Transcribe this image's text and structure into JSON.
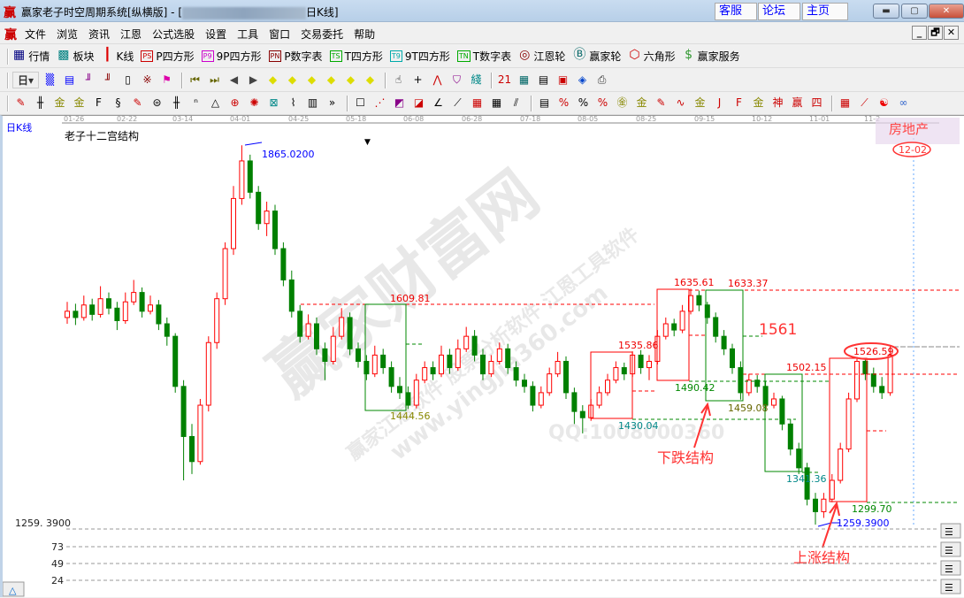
{
  "window": {
    "logo": "赢",
    "title_prefix": "赢家老子时空周期系统[纵横版] - [",
    "title_suffix": "日K线]",
    "links": [
      "客服",
      "论坛",
      "主页"
    ],
    "controls": [
      "minimize",
      "maximize",
      "close"
    ]
  },
  "menu": {
    "logo": "赢",
    "items": [
      "文件",
      "浏览",
      "资讯",
      "江恩",
      "公式选股",
      "设置",
      "工具",
      "窗口",
      "交易委托",
      "帮助"
    ],
    "mdi_controls": [
      "_",
      "🗗",
      "✕"
    ]
  },
  "toolbar1": [
    {
      "icon": "quote-table-icon",
      "glyph": "▦",
      "label": "行情",
      "color": "#000080"
    },
    {
      "icon": "sector-grid-icon",
      "glyph": "▩",
      "label": "板块",
      "color": "#008080"
    },
    {
      "icon": "kline-icon",
      "glyph": "┃",
      "label": "K线",
      "color": "#d00"
    },
    {
      "icon": "ps-icon",
      "glyph": "PS",
      "label": "P四方形",
      "color": "#c00"
    },
    {
      "icon": "p9-icon",
      "glyph": "P9",
      "label": "9P四方形",
      "color": "#c0c"
    },
    {
      "icon": "pn-icon",
      "glyph": "PN",
      "label": "P数字表",
      "color": "#800"
    },
    {
      "icon": "ts-icon",
      "glyph": "TS",
      "label": "T四方形",
      "color": "#0a0"
    },
    {
      "icon": "t9-icon",
      "glyph": "T9",
      "label": "9T四方形",
      "color": "#0aa"
    },
    {
      "icon": "tn-icon",
      "glyph": "TN",
      "label": "T数字表",
      "color": "#0a0"
    },
    {
      "icon": "gann-wheel-icon",
      "glyph": "◎",
      "label": "江恩轮",
      "color": "#800"
    },
    {
      "icon": "big-wheel-icon",
      "glyph": "Ⓑ",
      "label": "赢家轮",
      "color": "#066"
    },
    {
      "icon": "hexagon-icon",
      "glyph": "⬡",
      "label": "六角形",
      "color": "#c00"
    },
    {
      "icon": "dollar-icon",
      "glyph": "$",
      "label": "赢家服务",
      "color": "#393"
    }
  ],
  "toolbar2": {
    "period": "日",
    "icons": [
      [
        "map-icon",
        "▒",
        "#00f"
      ],
      [
        "clipboard-icon",
        "▤",
        "#00f"
      ],
      [
        "step3-icon",
        "╜",
        "#808"
      ],
      [
        "step9-icon",
        "╜",
        "#800"
      ],
      [
        "candle-icon",
        "▯",
        "#000"
      ],
      [
        "pattern-icon",
        "※",
        "#800"
      ],
      [
        "flag-icon",
        "⚑",
        "#d0a"
      ],
      "sep",
      [
        "first-icon",
        "⏮",
        "#660"
      ],
      [
        "last-icon",
        "⏭",
        "#660"
      ],
      [
        "left-arrow-icon",
        "◀",
        "#444"
      ],
      [
        "right-arrow-icon",
        "▶",
        "#444"
      ],
      [
        "diamond-left-icon",
        "◆",
        "#dd0"
      ],
      [
        "diamond-right-icon",
        "◆",
        "#dd0"
      ],
      [
        "diamond-h-icon",
        "◆",
        "#dd0"
      ],
      [
        "diamond-x-icon",
        "◆",
        "#dd0"
      ],
      [
        "diamond-v-icon",
        "◆",
        "#dd0"
      ],
      [
        "diamond-all-icon",
        "◆",
        "#dd0"
      ],
      "sep",
      [
        "hand-icon",
        "☝",
        "#000"
      ],
      [
        "crosshair-icon",
        "+",
        "#000"
      ],
      [
        "zigzag-icon",
        "⋀",
        "#c00"
      ],
      [
        "shirt-icon",
        "⛉",
        "#808"
      ],
      [
        "formula-icon",
        "綫",
        "#088"
      ],
      "sep",
      [
        "calendar-icon",
        "21",
        "#c00"
      ],
      [
        "calculator-icon",
        "▦",
        "#066"
      ],
      [
        "notes-icon",
        "▤",
        "#000"
      ],
      [
        "save-icon",
        "▣",
        "#c00"
      ],
      [
        "network-icon",
        "◈",
        "#04c"
      ],
      [
        "printer-icon",
        "⎙",
        "#333"
      ]
    ]
  },
  "toolbar3": {
    "icons": [
      [
        "pen-icon",
        "✎",
        "#c00"
      ],
      [
        "lines-icon",
        "╫",
        "#000"
      ],
      [
        "gold-icon",
        "金",
        "#880"
      ],
      [
        "gold2-icon",
        "金",
        "#880"
      ],
      [
        "fib-icon",
        "F",
        "#000"
      ],
      [
        "spiral-icon",
        "§",
        "#000"
      ],
      [
        "pen2-icon",
        "✎",
        "#c00"
      ],
      [
        "circle-lines-icon",
        "⊜",
        "#000"
      ],
      [
        "hash-icon",
        "╫",
        "#000"
      ],
      [
        "n2-icon",
        "ⁿ",
        "#000"
      ],
      [
        "triangle-icon",
        "△",
        "#000"
      ],
      [
        "target-icon",
        "⊕",
        "#c00"
      ],
      [
        "web-icon",
        "✺",
        "#c00"
      ],
      [
        "square-web-icon",
        "⊠",
        "#088"
      ],
      [
        "wave-icon",
        "⌇",
        "#000"
      ],
      [
        "ruler-icon",
        "▥",
        "#000"
      ],
      [
        "more-icon",
        "»",
        "#000"
      ],
      "sep",
      [
        "box-icon",
        "☐",
        "#000"
      ],
      [
        "fan-icon",
        "⋰",
        "#c00"
      ],
      [
        "box-fan-icon",
        "◩",
        "#808"
      ],
      [
        "fan2-icon",
        "◪",
        "#c00"
      ],
      [
        "angle-icon",
        "∠",
        "#000"
      ],
      [
        "slash-icon",
        "⟋",
        "#000"
      ],
      [
        "grid-icon",
        "▦",
        "#c00"
      ],
      [
        "grid2-icon",
        "▦",
        "#000"
      ],
      [
        "diag-icon",
        "⫽",
        "#000"
      ],
      "sep",
      [
        "table-icon",
        "▤",
        "#000"
      ],
      [
        "percent-line-icon",
        "%",
        "#c00"
      ],
      [
        "percent-icon",
        "%",
        "#000"
      ],
      [
        "percent-lines-icon",
        "%",
        "#c00"
      ],
      [
        "gold-circle-icon",
        "㊎",
        "#880"
      ],
      [
        "gold-lines-icon",
        "金",
        "#880"
      ],
      [
        "pen3-icon",
        "✎",
        "#c00"
      ],
      [
        "sine-icon",
        "∿",
        "#c00"
      ],
      [
        "gold3-icon",
        "金",
        "#880"
      ],
      [
        "j-fan-icon",
        "J",
        "#c00"
      ],
      [
        "f-fan-icon",
        "F",
        "#c00"
      ],
      [
        "gold-fan-icon",
        "金",
        "#880"
      ],
      [
        "shen-fan-icon",
        "神",
        "#c00"
      ],
      [
        "ying-fan-icon",
        "赢",
        "#c00"
      ],
      [
        "si-fan-icon",
        "四",
        "#c00"
      ],
      "sep",
      [
        "grid-yellow-icon",
        "▦",
        "#c00"
      ],
      [
        "line-chart-icon",
        "⟋",
        "#c00"
      ],
      [
        "taiji-icon",
        "☯",
        "#e00"
      ],
      [
        "infinity-icon",
        "∞",
        "#36c"
      ]
    ]
  },
  "chart": {
    "period_label": "日K线",
    "indicator_name": "老子十二宫结构",
    "sector": "房地产",
    "sector_date": "12-02",
    "date_ticks": [
      "01-26",
      "02-22",
      "03-14",
      "04-01",
      "04-25",
      "05-18",
      "06-08",
      "06-28",
      "07-18",
      "08-05",
      "08-25",
      "09-15",
      "10-12",
      "11-01",
      "11-2"
    ],
    "price_axis_label": "1259. 3900",
    "indicator_ticks": [
      "73",
      "49",
      "24"
    ],
    "watermark": {
      "main": "赢家财富网",
      "sub": "赢家江恩软件 股票分析软件 江恩工具软件",
      "url": "www.yingjia360.com",
      "qq": "QQ:1008000360"
    },
    "annotations": {
      "high": "1865.0200",
      "low": "1259.3900",
      "l1609": "1609.81",
      "l1444": "1444.56",
      "l1535": "1535.86",
      "l1430": "1430.04",
      "l1635": "1635.61",
      "l1633": "1633.37",
      "l1490": "1490.42",
      "l1561": "1561",
      "l1459": "1459.08",
      "l1502": "1502.15",
      "l1526": "1526.59",
      "l1341": "1341.36",
      "l1299": "1299.70",
      "down_structure": "下跌结构",
      "up_structure": "上涨结构"
    },
    "colors": {
      "up": "#ff0000",
      "down": "#008000",
      "annotation": "#ff3333"
    }
  },
  "chart_data": {
    "type": "candlestick",
    "ylim": [
      1259.39,
      1865.02
    ],
    "up_color": "#ff0000",
    "down_color": "#008000",
    "ohlc": [
      [
        1590,
        1615,
        1580,
        1600
      ],
      [
        1600,
        1612,
        1578,
        1590
      ],
      [
        1590,
        1625,
        1585,
        1610
      ],
      [
        1610,
        1620,
        1585,
        1595
      ],
      [
        1595,
        1640,
        1590,
        1620
      ],
      [
        1620,
        1630,
        1595,
        1605
      ],
      [
        1605,
        1615,
        1570,
        1585
      ],
      [
        1585,
        1630,
        1580,
        1615
      ],
      [
        1615,
        1650,
        1610,
        1630
      ],
      [
        1630,
        1638,
        1590,
        1600
      ],
      [
        1600,
        1625,
        1595,
        1610
      ],
      [
        1610,
        1618,
        1570,
        1580
      ],
      [
        1580,
        1590,
        1545,
        1560
      ],
      [
        1560,
        1565,
        1470,
        1480
      ],
      [
        1480,
        1490,
        1330,
        1400
      ],
      [
        1400,
        1420,
        1340,
        1360
      ],
      [
        1360,
        1460,
        1355,
        1450
      ],
      [
        1450,
        1560,
        1440,
        1550
      ],
      [
        1550,
        1630,
        1540,
        1620
      ],
      [
        1620,
        1710,
        1610,
        1700
      ],
      [
        1700,
        1800,
        1690,
        1780
      ],
      [
        1780,
        1865,
        1770,
        1840
      ],
      [
        1840,
        1850,
        1780,
        1790
      ],
      [
        1790,
        1800,
        1730,
        1740
      ],
      [
        1740,
        1775,
        1720,
        1760
      ],
      [
        1760,
        1770,
        1690,
        1700
      ],
      [
        1700,
        1710,
        1640,
        1650
      ],
      [
        1650,
        1665,
        1590,
        1600
      ],
      [
        1600,
        1610,
        1550,
        1560
      ],
      [
        1560,
        1595,
        1555,
        1580
      ],
      [
        1580,
        1590,
        1530,
        1540
      ],
      [
        1540,
        1550,
        1490,
        1520
      ],
      [
        1520,
        1575,
        1515,
        1560
      ],
      [
        1560,
        1605,
        1555,
        1590
      ],
      [
        1590,
        1598,
        1530,
        1540
      ],
      [
        1540,
        1550,
        1510,
        1520
      ],
      [
        1520,
        1530,
        1490,
        1500
      ],
      [
        1500,
        1545,
        1495,
        1530
      ],
      [
        1530,
        1540,
        1500,
        1510
      ],
      [
        1510,
        1520,
        1470,
        1480
      ],
      [
        1480,
        1495,
        1460,
        1470
      ],
      [
        1470,
        1480,
        1444,
        1450
      ],
      [
        1450,
        1500,
        1445,
        1490
      ],
      [
        1490,
        1520,
        1485,
        1510
      ],
      [
        1510,
        1520,
        1490,
        1500
      ],
      [
        1500,
        1545,
        1495,
        1530
      ],
      [
        1530,
        1540,
        1500,
        1510
      ],
      [
        1510,
        1555,
        1505,
        1540
      ],
      [
        1540,
        1575,
        1535,
        1560
      ],
      [
        1560,
        1570,
        1520,
        1530
      ],
      [
        1530,
        1540,
        1490,
        1500
      ],
      [
        1500,
        1530,
        1495,
        1520
      ],
      [
        1520,
        1550,
        1515,
        1540
      ],
      [
        1540,
        1548,
        1500,
        1510
      ],
      [
        1510,
        1520,
        1480,
        1490
      ],
      [
        1490,
        1500,
        1470,
        1480
      ],
      [
        1480,
        1488,
        1440,
        1450
      ],
      [
        1450,
        1480,
        1445,
        1470
      ],
      [
        1470,
        1510,
        1465,
        1500
      ],
      [
        1500,
        1535,
        1495,
        1520
      ],
      [
        1520,
        1528,
        1460,
        1470
      ],
      [
        1470,
        1478,
        1420,
        1440
      ],
      [
        1440,
        1450,
        1405,
        1430
      ],
      [
        1430,
        1460,
        1425,
        1450
      ],
      [
        1450,
        1480,
        1445,
        1470
      ],
      [
        1470,
        1500,
        1465,
        1490
      ],
      [
        1490,
        1520,
        1485,
        1510
      ],
      [
        1510,
        1518,
        1490,
        1500
      ],
      [
        1500,
        1536,
        1495,
        1530
      ],
      [
        1530,
        1538,
        1500,
        1510
      ],
      [
        1510,
        1530,
        1490,
        1520
      ],
      [
        1520,
        1570,
        1515,
        1560
      ],
      [
        1560,
        1590,
        1555,
        1580
      ],
      [
        1580,
        1588,
        1560,
        1570
      ],
      [
        1570,
        1610,
        1565,
        1600
      ],
      [
        1600,
        1636,
        1595,
        1625
      ],
      [
        1625,
        1633,
        1600,
        1610
      ],
      [
        1610,
        1615,
        1580,
        1590
      ],
      [
        1590,
        1598,
        1550,
        1560
      ],
      [
        1560,
        1570,
        1530,
        1540
      ],
      [
        1540,
        1548,
        1500,
        1510
      ],
      [
        1510,
        1520,
        1459,
        1470
      ],
      [
        1470,
        1500,
        1465,
        1490
      ],
      [
        1490,
        1498,
        1470,
        1480
      ],
      [
        1480,
        1488,
        1440,
        1450
      ],
      [
        1450,
        1470,
        1445,
        1460
      ],
      [
        1460,
        1465,
        1410,
        1420
      ],
      [
        1420,
        1428,
        1370,
        1380
      ],
      [
        1380,
        1390,
        1340,
        1350
      ],
      [
        1350,
        1358,
        1290,
        1300
      ],
      [
        1300,
        1310,
        1259.39,
        1280
      ],
      [
        1280,
        1310,
        1270,
        1300
      ],
      [
        1300,
        1340,
        1295,
        1330
      ],
      [
        1330,
        1390,
        1325,
        1380
      ],
      [
        1380,
        1470,
        1375,
        1460
      ],
      [
        1460,
        1527,
        1455,
        1520
      ],
      [
        1520,
        1525,
        1490,
        1500
      ],
      [
        1500,
        1510,
        1470,
        1480
      ],
      [
        1480,
        1495,
        1460,
        1470
      ],
      [
        1470,
        1545,
        1465,
        1530
      ]
    ]
  }
}
